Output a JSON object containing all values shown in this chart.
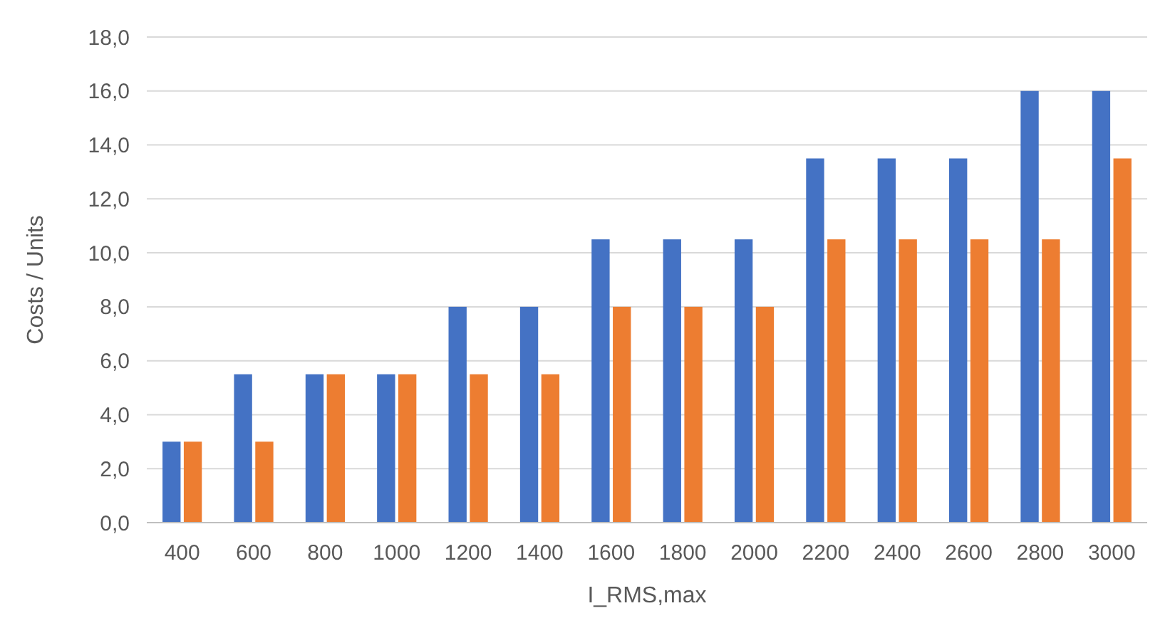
{
  "chart_data": {
    "type": "bar",
    "xlabel": "I_RMS,max",
    "ylabel": "Costs / Units",
    "categories": [
      "400",
      "600",
      "800",
      "1000",
      "1200",
      "1400",
      "1600",
      "1800",
      "2000",
      "2200",
      "2400",
      "2600",
      "2800",
      "3000"
    ],
    "series": [
      {
        "color": "#4472c4",
        "values": [
          3,
          5.5,
          5.5,
          5.5,
          8,
          8,
          10.5,
          10.5,
          10.5,
          13.5,
          13.5,
          13.5,
          16,
          16
        ]
      },
      {
        "color": "#ed7d31",
        "values": [
          3,
          3,
          5.5,
          5.5,
          5.5,
          5.5,
          8,
          8,
          8,
          10.5,
          10.5,
          10.5,
          10.5,
          13.5
        ]
      }
    ],
    "ylim": [
      0,
      18
    ],
    "yticks": [
      {
        "value": 0,
        "label": "0,0"
      },
      {
        "value": 2,
        "label": "2,0"
      },
      {
        "value": 4,
        "label": "4,0"
      },
      {
        "value": 6,
        "label": "6,0"
      },
      {
        "value": 8,
        "label": "8,0"
      },
      {
        "value": 10,
        "label": "10,0"
      },
      {
        "value": 12,
        "label": "12,0"
      },
      {
        "value": 14,
        "label": "14,0"
      },
      {
        "value": 16,
        "label": "16,0"
      },
      {
        "value": 18,
        "label": "18,0"
      }
    ],
    "grid": "y"
  }
}
